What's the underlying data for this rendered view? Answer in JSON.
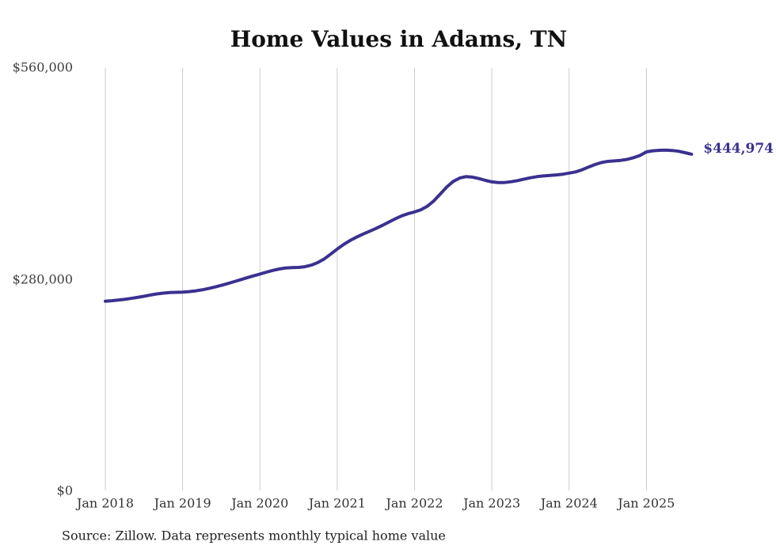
{
  "title": "Home Values in Adams, TN",
  "source_note": "Source: Zillow. Data represents monthly typical home value",
  "end_label": "$444,974",
  "colors": {
    "line": "#3a318f",
    "grid": "#cccccc",
    "title": "#111111",
    "axis_label": "#3d3d3d",
    "end_label": "#3a318f",
    "background": "#ffffff"
  },
  "chart_data": {
    "type": "line",
    "title": "Home Values in Adams, TN",
    "xlabel": "",
    "ylabel": "",
    "ylim": [
      0,
      560000
    ],
    "grid": "vertical-only",
    "legend": "none",
    "x_start_month": "Jan 2018",
    "x_end_month": "Aug 2025",
    "x_tick_labels": [
      "Jan 2018",
      "Jan 2019",
      "Jan 2020",
      "Jan 2021",
      "Jan 2022",
      "Jan 2023",
      "Jan 2024",
      "Jan 2025"
    ],
    "y_ticks": [
      {
        "value": 0,
        "label": "$0"
      },
      {
        "value": 280000,
        "label": "$280,000"
      },
      {
        "value": 560000,
        "label": "$560,000"
      }
    ],
    "final_value": 444974,
    "series": [
      {
        "name": "Monthly typical home value",
        "values": [
          250500,
          251100,
          251900,
          252900,
          254100,
          255500,
          257000,
          258600,
          260100,
          261200,
          261900,
          262200,
          262500,
          263100,
          264100,
          265500,
          267200,
          269200,
          271400,
          273800,
          276300,
          278900,
          281500,
          284000,
          286400,
          288900,
          291200,
          293100,
          294400,
          295000,
          295200,
          296100,
          298200,
          301700,
          306500,
          312800,
          319500,
          325500,
          330800,
          335300,
          339200,
          342900,
          346700,
          350800,
          355100,
          359400,
          363300,
          366300,
          368600,
          371500,
          376200,
          383200,
          392200,
          401500,
          408800,
          413400,
          415300,
          414600,
          412700,
          410300,
          408300,
          407500,
          407500,
          408500,
          410000,
          412000,
          413800,
          415200,
          416200,
          416800,
          417500,
          418500,
          420000,
          421500,
          424300,
          427900,
          431300,
          433900,
          435400,
          436100,
          436800,
          438100,
          440400,
          443300,
          448000,
          449500,
          450100,
          450300,
          449900,
          448800,
          447000,
          444974
        ]
      }
    ]
  }
}
